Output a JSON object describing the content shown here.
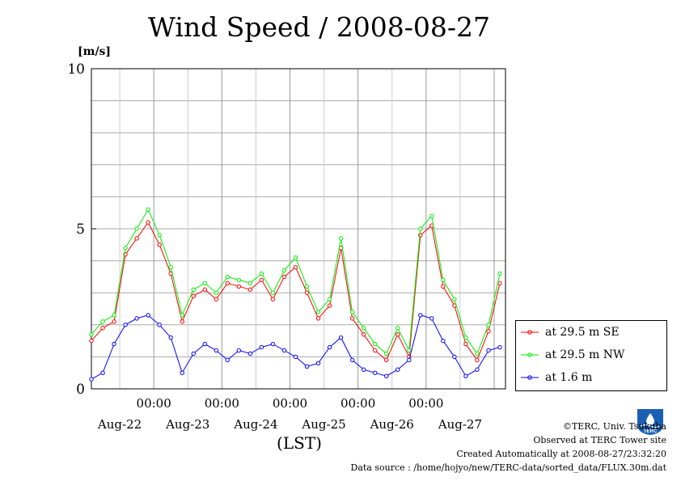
{
  "page": {
    "title": "Wind Speed / 2008-08-27",
    "unit": "[m/s]",
    "credits": [
      "©TERC, Univ. Tsukuba",
      "Observed at TERC Tower site",
      "Created Automatically at 2008-08-27/23:32:20",
      "Data source : /home/hojyo/new/TERC-data/sorted_data/FLUX.30m.dat"
    ],
    "logo_text": "TERC"
  },
  "chart_data": {
    "type": "line",
    "title": "Wind Speed / 2008-08-27",
    "ylabel": "[m/s]",
    "xlabel": "(LST)",
    "ylim": [
      0,
      10
    ],
    "yticks": [
      "0",
      "5",
      "10"
    ],
    "xlim_hours": [
      0,
      146
    ],
    "time_ticks": [
      "00:00",
      "00:00",
      "00:00",
      "00:00",
      "00:00"
    ],
    "date_labels": [
      "Aug-22",
      "Aug-23",
      "Aug-24",
      "Aug-25",
      "Aug-26",
      "Aug-27"
    ],
    "grid": true,
    "legend_position": "right",
    "x_hours": [
      0,
      4,
      8,
      12,
      16,
      20,
      24,
      28,
      32,
      36,
      40,
      44,
      48,
      52,
      56,
      60,
      64,
      68,
      72,
      76,
      80,
      84,
      88,
      92,
      96,
      100,
      104,
      108,
      112,
      116,
      120,
      124,
      128,
      132,
      136,
      140,
      144
    ],
    "series": [
      {
        "name": "at 29.5 m SE",
        "color": "#ff0000",
        "values": [
          1.5,
          1.9,
          2.1,
          4.2,
          4.7,
          5.2,
          4.5,
          3.6,
          2.1,
          2.9,
          3.1,
          2.8,
          3.3,
          3.2,
          3.1,
          3.4,
          2.8,
          3.5,
          3.8,
          3.0,
          2.2,
          2.6,
          4.4,
          2.2,
          1.7,
          1.2,
          0.9,
          1.7,
          1.0,
          4.8,
          5.1,
          3.2,
          2.6,
          1.4,
          0.9,
          1.8,
          3.3
        ]
      },
      {
        "name": "at 29.5 m NW",
        "color": "#00ee00",
        "values": [
          1.7,
          2.1,
          2.3,
          4.4,
          5.0,
          5.6,
          4.8,
          3.8,
          2.3,
          3.1,
          3.3,
          3.0,
          3.5,
          3.4,
          3.3,
          3.6,
          3.0,
          3.7,
          4.1,
          3.2,
          2.4,
          2.8,
          4.7,
          2.4,
          1.9,
          1.4,
          1.1,
          1.9,
          1.2,
          5.0,
          5.4,
          3.4,
          2.8,
          1.6,
          1.1,
          2.0,
          3.6
        ]
      },
      {
        "name": "at 1.6 m",
        "color": "#0000ff",
        "values": [
          0.3,
          0.5,
          1.4,
          2.0,
          2.2,
          2.3,
          2.0,
          1.6,
          0.5,
          1.1,
          1.4,
          1.2,
          0.9,
          1.2,
          1.1,
          1.3,
          1.4,
          1.2,
          1.0,
          0.7,
          0.8,
          1.3,
          1.6,
          0.9,
          0.6,
          0.5,
          0.4,
          0.6,
          0.9,
          2.3,
          2.2,
          1.5,
          1.0,
          0.4,
          0.6,
          1.2,
          1.3
        ]
      }
    ]
  }
}
